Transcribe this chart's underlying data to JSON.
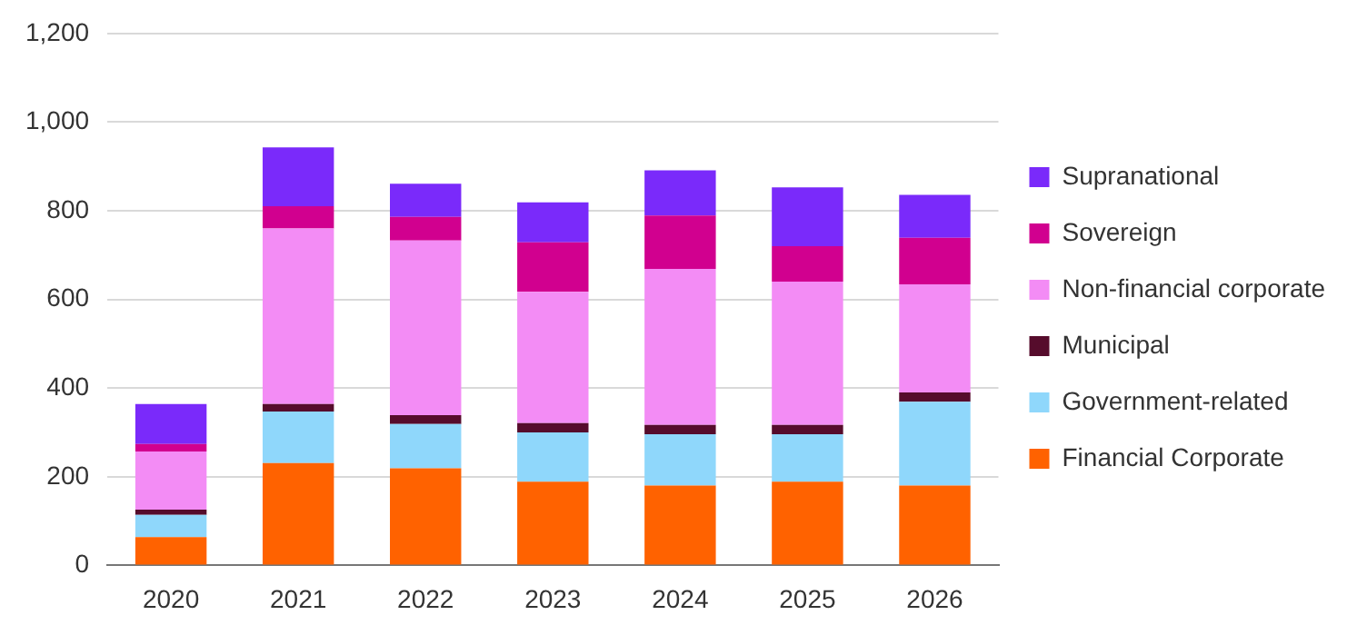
{
  "chart_data": {
    "type": "bar",
    "stacked": true,
    "categories": [
      "2020",
      "2021",
      "2022",
      "2023",
      "2024",
      "2025",
      "2026"
    ],
    "series": [
      {
        "name": "Financial Corporate",
        "color": "#ff6200",
        "values": [
          64,
          231,
          219,
          189,
          180,
          189,
          180
        ]
      },
      {
        "name": "Government-related",
        "color": "#8fd7fb",
        "values": [
          50,
          116,
          100,
          111,
          116,
          107,
          189
        ]
      },
      {
        "name": "Municipal",
        "color": "#560c2c",
        "values": [
          12,
          17,
          20,
          21,
          21,
          21,
          21
        ]
      },
      {
        "name": "Non-financial corporate",
        "color": "#f38cf5",
        "values": [
          131,
          396,
          394,
          296,
          352,
          323,
          244
        ]
      },
      {
        "name": "Sovereign",
        "color": "#d1008f",
        "values": [
          17,
          50,
          53,
          112,
          120,
          80,
          105
        ]
      },
      {
        "name": "Supranational",
        "color": "#7a2afa",
        "values": [
          90,
          133,
          75,
          90,
          102,
          133,
          97
        ]
      }
    ],
    "ylim": [
      0,
      1200
    ],
    "yticks": [
      0,
      200,
      400,
      600,
      800,
      {
        "value": 1000,
        "label": "1,000"
      },
      {
        "value": 1200,
        "label": "1,200"
      }
    ],
    "grid": "y",
    "legend": "right"
  }
}
